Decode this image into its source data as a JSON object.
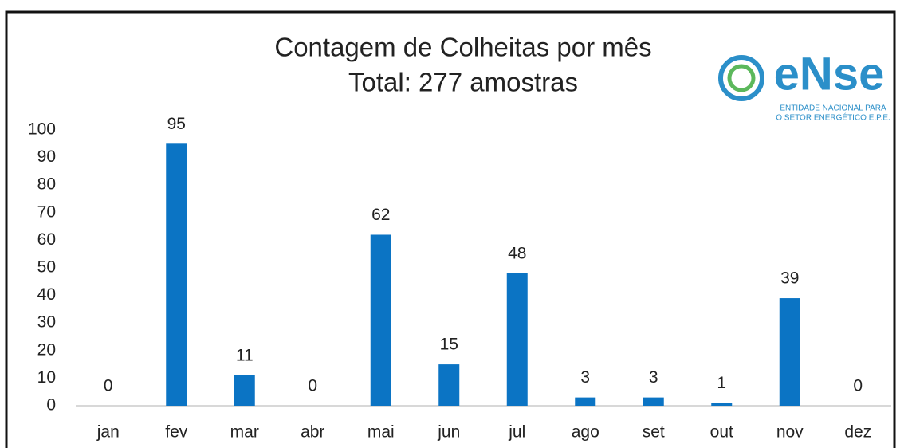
{
  "chart_data": {
    "type": "bar",
    "title": [
      "Contagem de Colheitas por mês",
      "Total: 277 amostras"
    ],
    "logo": {
      "name": "eNse",
      "caption": [
        "ENTIDADE NACIONAL PARA",
        "O SETOR ENERGÉTICO E.P.E."
      ]
    },
    "categories": [
      "jan",
      "fev",
      "mar",
      "abr",
      "mai",
      "jun",
      "jul",
      "ago",
      "set",
      "out",
      "nov",
      "dez"
    ],
    "values": [
      0,
      95,
      11,
      0,
      62,
      15,
      48,
      3,
      3,
      1,
      39,
      0
    ],
    "color": "#0b74c4",
    "ylim": [
      0,
      100
    ],
    "yticks": [
      0,
      10,
      20,
      30,
      40,
      50,
      60,
      70,
      80,
      90,
      100
    ],
    "grid": false
  }
}
